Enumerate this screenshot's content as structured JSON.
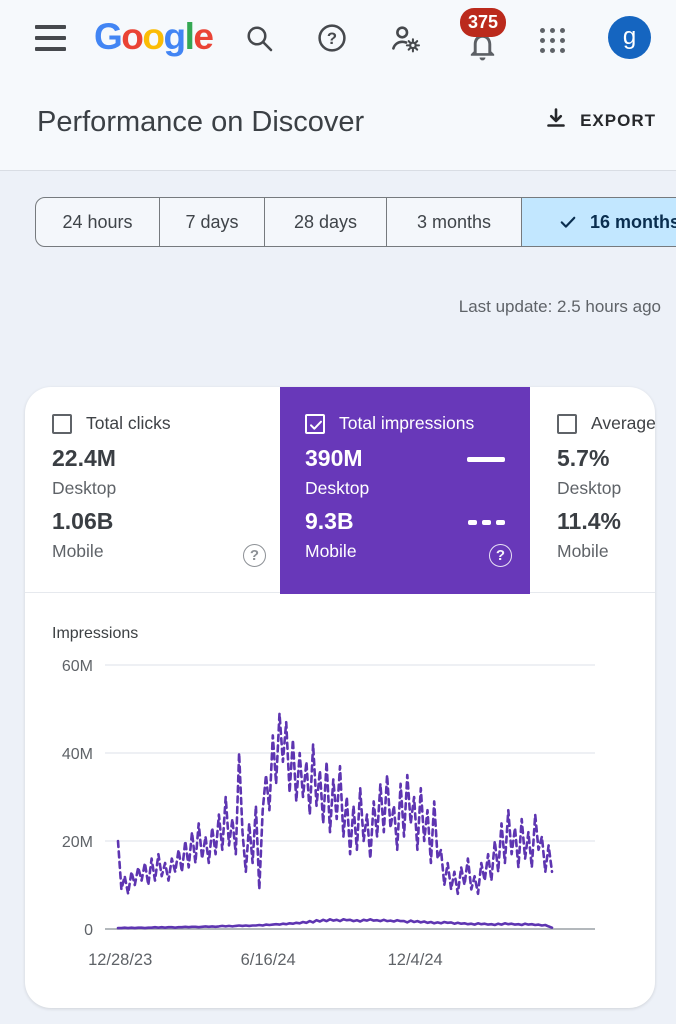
{
  "header": {
    "logo_letters": [
      {
        "ch": "G",
        "color": "#4285F4"
      },
      {
        "ch": "o",
        "color": "#EA4335"
      },
      {
        "ch": "o",
        "color": "#FBBC05"
      },
      {
        "ch": "g",
        "color": "#4285F4"
      },
      {
        "ch": "l",
        "color": "#34A853"
      },
      {
        "ch": "e",
        "color": "#EA4335"
      }
    ],
    "notification_count": "375",
    "avatar_letter": "g"
  },
  "page": {
    "title": "Performance on Discover",
    "export_label": "EXPORT",
    "last_update": "Last update: 2.5 hours ago"
  },
  "date_tabs": {
    "options": [
      {
        "label": "24 hours",
        "selected": false
      },
      {
        "label": "7 days",
        "selected": false
      },
      {
        "label": "28 days",
        "selected": false
      },
      {
        "label": "3 months",
        "selected": false
      },
      {
        "label": "16 months",
        "selected": true
      }
    ]
  },
  "icons": {
    "question": "?"
  },
  "metric_cards": [
    {
      "label": "Total clicks",
      "checked": false,
      "selected": false,
      "metrics": [
        {
          "value": "22.4M",
          "device": "Desktop"
        },
        {
          "value": "1.06B",
          "device": "Mobile"
        }
      ]
    },
    {
      "label": "Total impressions",
      "checked": true,
      "selected": true,
      "accent": "#6838b9",
      "metrics": [
        {
          "value": "390M",
          "device": "Desktop",
          "legend": "solid"
        },
        {
          "value": "9.3B",
          "device": "Mobile",
          "legend": "dashed"
        }
      ]
    },
    {
      "label": "Average CTR",
      "checked": false,
      "selected": false,
      "metrics": [
        {
          "value": "5.7%",
          "device": "Desktop"
        },
        {
          "value": "11.4%",
          "device": "Mobile"
        }
      ]
    }
  ],
  "chart_data": {
    "type": "line",
    "title": "Impressions",
    "unit": "millions per day",
    "ylim": [
      0,
      60
    ],
    "grid": true,
    "legend_position": "in-card",
    "yticks": [
      {
        "label": "60M",
        "value": 60
      },
      {
        "label": "40M",
        "value": 40
      },
      {
        "label": "20M",
        "value": 20
      },
      {
        "label": "0",
        "value": 0
      }
    ],
    "xticks": [
      {
        "label": "12/28/23",
        "pos": 0.031
      },
      {
        "label": "6/16/24",
        "pos": 0.333
      },
      {
        "label": "12/4/24",
        "pos": 0.633
      }
    ],
    "series": [
      {
        "name": "Mobile",
        "style": "dashed",
        "color": "#5e35b1",
        "values": [
          20,
          9,
          12,
          8,
          13,
          10,
          14,
          11,
          15,
          10,
          16,
          11,
          17,
          12,
          15,
          11,
          16,
          13,
          18,
          13,
          20,
          14,
          22,
          15,
          24,
          16,
          21,
          15,
          23,
          17,
          26,
          18,
          30,
          19,
          25,
          17,
          40,
          22,
          13,
          24,
          15,
          28,
          9,
          27,
          35,
          27,
          44,
          33,
          49,
          38,
          47,
          31,
          43,
          29,
          40,
          30,
          38,
          26,
          42,
          28,
          36,
          24,
          38,
          22,
          34,
          25,
          37,
          21,
          30,
          17,
          28,
          18,
          32,
          20,
          26,
          16,
          29,
          21,
          33,
          22,
          35,
          23,
          28,
          18,
          33,
          21,
          35,
          24,
          30,
          18,
          32,
          20,
          27,
          15,
          29,
          16,
          18,
          10,
          15,
          9,
          13,
          8,
          14,
          10,
          16,
          9,
          12,
          8,
          15,
          11,
          17,
          11,
          20,
          13,
          24,
          15,
          27,
          17,
          23,
          14,
          25,
          16,
          22,
          14,
          26,
          18,
          21,
          13,
          19,
          13
        ]
      },
      {
        "name": "Desktop",
        "style": "solid",
        "color": "#5e35b1",
        "values": [
          0.2,
          0.2,
          0.3,
          0.2,
          0.3,
          0.2,
          0.3,
          0.3,
          0.2,
          0.3,
          0.3,
          0.4,
          0.3,
          0.4,
          0.3,
          0.4,
          0.4,
          0.3,
          0.4,
          0.4,
          0.5,
          0.4,
          0.5,
          0.5,
          0.4,
          0.5,
          0.6,
          0.5,
          0.6,
          0.5,
          0.6,
          0.7,
          0.6,
          0.7,
          0.6,
          0.7,
          0.8,
          0.7,
          0.8,
          0.7,
          0.8,
          0.8,
          0.9,
          0.8,
          1.0,
          0.9,
          1.0,
          1.1,
          1.0,
          1.2,
          1.1,
          1.3,
          1.2,
          1.4,
          1.3,
          1.6,
          1.4,
          1.8,
          1.5,
          2.0,
          1.7,
          2.1,
          1.8,
          2.2,
          1.9,
          2.1,
          1.8,
          2.2,
          2.0,
          2.1,
          1.8,
          2.0,
          1.7,
          2.1,
          1.9,
          2.2,
          1.9,
          2.0,
          1.8,
          2.1,
          1.8,
          1.9,
          1.7,
          2.0,
          1.8,
          1.8,
          1.5,
          1.9,
          1.6,
          1.8,
          1.5,
          1.7,
          1.4,
          1.6,
          1.3,
          1.5,
          1.3,
          1.6,
          1.4,
          1.5,
          1.2,
          1.4,
          1.2,
          1.3,
          1.1,
          1.2,
          1.0,
          1.3,
          1.1,
          1.2,
          1.0,
          1.1,
          0.9,
          1.2,
          1.0,
          1.3,
          1.1,
          1.2,
          1.0,
          1.1,
          0.9,
          1.2,
          1.0,
          1.1,
          0.9,
          1.0,
          0.8,
          0.9,
          0.6,
          0.3
        ]
      }
    ]
  }
}
